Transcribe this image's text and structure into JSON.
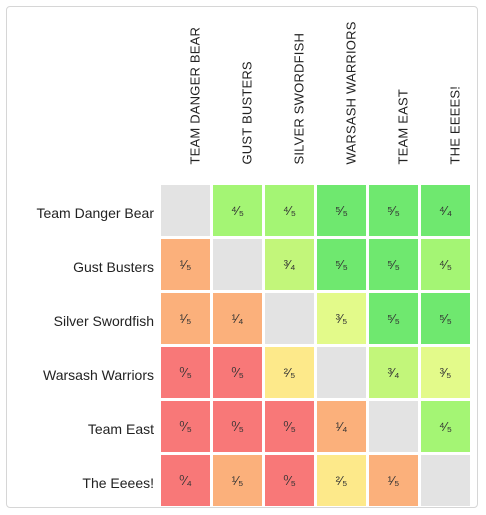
{
  "teams": [
    "Team Danger Bear",
    "Gust Busters",
    "Silver Swordfish",
    "Warsash Warriors",
    "Team East",
    "The Eeees!"
  ],
  "column_headers": [
    "TEAM DANGER BEAR",
    "GUST BUSTERS",
    "SILVER SWORDFISH",
    "WARSASH WARRIORS",
    "TEAM EAST",
    "THE EEEES!"
  ],
  "matrix": [
    [
      null,
      "⁴⁄₅",
      "⁴⁄₅",
      "⁵⁄₅",
      "⁵⁄₅",
      "⁴⁄₄"
    ],
    [
      "¹⁄₅",
      null,
      "³⁄₄",
      "⁵⁄₅",
      "⁵⁄₅",
      "⁴⁄₅"
    ],
    [
      "¹⁄₅",
      "¹⁄₄",
      null,
      "³⁄₅",
      "⁵⁄₅",
      "⁵⁄₅"
    ],
    [
      "⁰⁄₅",
      "⁰⁄₅",
      "²⁄₅",
      null,
      "³⁄₄",
      "³⁄₅"
    ],
    [
      "⁰⁄₅",
      "⁰⁄₅",
      "⁰⁄₅",
      "¹⁄₄",
      null,
      "⁴⁄₅"
    ],
    [
      "⁰⁄₄",
      "¹⁄₅",
      "⁰⁄₅",
      "²⁄₅",
      "¹⁄₅",
      null
    ]
  ],
  "ratios": [
    [
      null,
      0.8,
      0.8,
      1.0,
      1.0,
      1.0
    ],
    [
      0.2,
      null,
      0.75,
      1.0,
      1.0,
      0.8
    ],
    [
      0.2,
      0.25,
      null,
      0.6,
      1.0,
      1.0
    ],
    [
      0.0,
      0.0,
      0.4,
      null,
      0.75,
      0.6
    ],
    [
      0.0,
      0.0,
      0.0,
      0.25,
      null,
      0.8
    ],
    [
      0.0,
      0.2,
      0.0,
      0.4,
      0.2,
      null
    ]
  ],
  "colors": {
    "empty": "#e3e3e3",
    "r0": "#f87878",
    "r25": "#fbb07b",
    "r40": "#fde98a",
    "r60": "#e3fa8a",
    "r75": "#c2f67a",
    "r80": "#a4f574",
    "r100": "#6fe86f"
  }
}
